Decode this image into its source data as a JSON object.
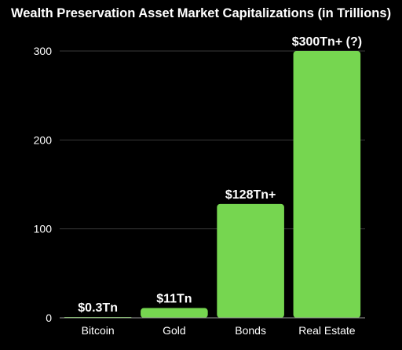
{
  "colors": {
    "background": "#000000",
    "bar": "#76d650",
    "text": "#ffffff",
    "grid": "#3a3a3a",
    "axis": "#9a9a9a"
  },
  "chart_data": {
    "type": "bar",
    "title": "Wealth Preservation Asset Market Capitalizations (in Trillions)",
    "xlabel": "",
    "ylabel": "",
    "categories": [
      "Bitcoin",
      "Gold",
      "Bonds",
      "Real Estate"
    ],
    "values": [
      0.3,
      11,
      128,
      300
    ],
    "data_labels": [
      "$0.3Tn",
      "$11Tn",
      "$128Tn+",
      "$300Tn+ (?)"
    ],
    "ylim": [
      0,
      300
    ],
    "yticks": [
      0,
      100,
      200,
      300
    ],
    "grid": true,
    "legend": "none"
  }
}
